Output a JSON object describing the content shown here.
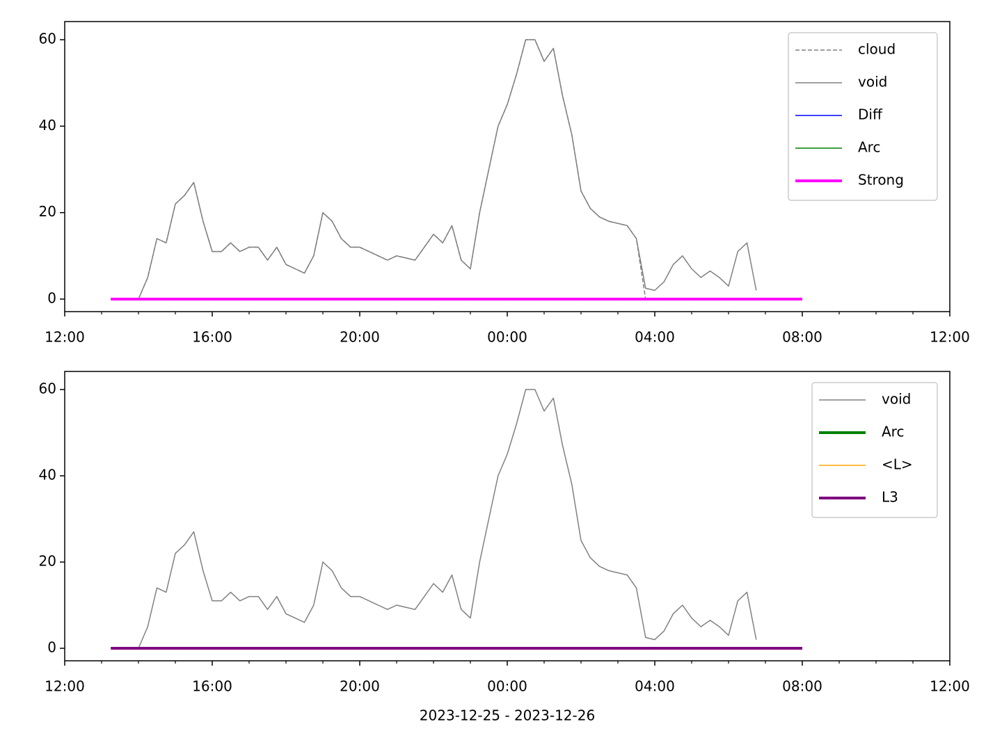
{
  "chart_data": [
    {
      "type": "line",
      "x": [
        13.25,
        13.5,
        13.75,
        14.0,
        14.25,
        14.5,
        14.75,
        15.0,
        15.25,
        15.5,
        15.75,
        16.0,
        16.25,
        16.5,
        16.75,
        17.0,
        17.25,
        17.5,
        17.75,
        18.0,
        18.25,
        18.5,
        18.75,
        19.0,
        19.25,
        19.5,
        19.75,
        20.0,
        20.25,
        20.5,
        20.75,
        21.0,
        21.25,
        21.5,
        21.75,
        22.0,
        22.25,
        22.5,
        22.75,
        23.0,
        23.25,
        23.5,
        23.75,
        24.0,
        24.25,
        24.5,
        24.75,
        25.0,
        25.25,
        25.5,
        25.75,
        26.0,
        26.25,
        26.5,
        26.75,
        27.0,
        27.25,
        27.5,
        27.75,
        28.0,
        28.25,
        28.5,
        28.75,
        29.0,
        29.25,
        29.5,
        29.75,
        30.0,
        30.25,
        30.5,
        30.75,
        31.0,
        31.25,
        31.5,
        31.75,
        32.0
      ],
      "series": [
        {
          "name": "cloud",
          "color": "#808080",
          "linestyle": "dashed",
          "linewidth": 1.5,
          "values": [
            null,
            null,
            null,
            0,
            5,
            14,
            13,
            22,
            24,
            27,
            18,
            11,
            11,
            13,
            11,
            12,
            12,
            9,
            12,
            8,
            7,
            6,
            10,
            20,
            18,
            14,
            12,
            12,
            11,
            10,
            9,
            10,
            9.5,
            9,
            12,
            15,
            13,
            17,
            9,
            7,
            20,
            30,
            40,
            45,
            52,
            60,
            60,
            55,
            58,
            47,
            38,
            25,
            21,
            19,
            18,
            17.5,
            17,
            14,
            0,
            0,
            0,
            0,
            0,
            0,
            0,
            0,
            0,
            0,
            0,
            0,
            0,
            null,
            null,
            null,
            null,
            null
          ]
        },
        {
          "name": "void",
          "color": "#808080",
          "linewidth": 1.5,
          "values": [
            null,
            null,
            null,
            0,
            5,
            14,
            13,
            22,
            24,
            27,
            18,
            11,
            11,
            13,
            11,
            12,
            12,
            9,
            12,
            8,
            7,
            6,
            10,
            20,
            18,
            14,
            12,
            12,
            11,
            10,
            9,
            10,
            9.5,
            9,
            12,
            15,
            13,
            17,
            9,
            7,
            20,
            30,
            40,
            45,
            52,
            60,
            60,
            55,
            58,
            47,
            38,
            25,
            21,
            19,
            18,
            17.5,
            17,
            14,
            2.5,
            2,
            4,
            8,
            10,
            7,
            5,
            6.5,
            5,
            3,
            11,
            13,
            2,
            null,
            null,
            null,
            null,
            null
          ]
        },
        {
          "name": "Diff",
          "color": "#0000ff",
          "linewidth": 1.5,
          "values": [
            0,
            0,
            0,
            0,
            0,
            0,
            0,
            0,
            0,
            0,
            0,
            0,
            0,
            0,
            0,
            0,
            0,
            0,
            0,
            0,
            0,
            0,
            0,
            0,
            0,
            0,
            0,
            0,
            0,
            0,
            0,
            0,
            0,
            0,
            0,
            0,
            0,
            0,
            0,
            0,
            0,
            0,
            0,
            0,
            0,
            0,
            0,
            0,
            0,
            0,
            0,
            0,
            0,
            0,
            0,
            0,
            0,
            0,
            0,
            0,
            0,
            0,
            0,
            0,
            0,
            0,
            0,
            0,
            0,
            0,
            0,
            0,
            0,
            0,
            0,
            0
          ]
        },
        {
          "name": "Arc",
          "color": "#008000",
          "linewidth": 1.5,
          "values": [
            0,
            0,
            0,
            0,
            0,
            0,
            0,
            0,
            0,
            0,
            0,
            0,
            0,
            0,
            0,
            0,
            0,
            0,
            0,
            0,
            0,
            0,
            0,
            0,
            0,
            0,
            0,
            0,
            0,
            0,
            0,
            0,
            0,
            0,
            0,
            0,
            0,
            0,
            0,
            0,
            0,
            0,
            0,
            0,
            0,
            0,
            0,
            0,
            0,
            0,
            0,
            0,
            0,
            0,
            0,
            0,
            0,
            0,
            0,
            0,
            0,
            0,
            0,
            0,
            0,
            0,
            0,
            0,
            0,
            0,
            0,
            0,
            0,
            0,
            0,
            0
          ]
        },
        {
          "name": "Strong",
          "color": "#ff00ff",
          "linewidth": 4,
          "values": [
            0,
            0,
            0,
            0,
            0,
            0,
            0,
            0,
            0,
            0,
            0,
            0,
            0,
            0,
            0,
            0,
            0,
            0,
            0,
            0,
            0,
            0,
            0,
            0,
            0,
            0,
            0,
            0,
            0,
            0,
            0,
            0,
            0,
            0,
            0,
            0,
            0,
            0,
            0,
            0,
            0,
            0,
            0,
            0,
            0,
            0,
            0,
            0,
            0,
            0,
            0,
            0,
            0,
            0,
            0,
            0,
            0,
            0,
            0,
            0,
            0,
            0,
            0,
            0,
            0,
            0,
            0,
            0,
            0,
            0,
            0,
            0,
            0,
            0,
            0,
            0
          ]
        }
      ],
      "xlim": [
        12,
        36
      ],
      "xticks": [
        {
          "value": 12,
          "label": "12:00"
        },
        {
          "value": 16,
          "label": "16:00"
        },
        {
          "value": 20,
          "label": "20:00"
        },
        {
          "value": 24,
          "label": "00:00"
        },
        {
          "value": 28,
          "label": "04:00"
        },
        {
          "value": 32,
          "label": "08:00"
        },
        {
          "value": 36,
          "label": "12:00"
        }
      ],
      "xminorticks": [
        13,
        14,
        15,
        17,
        18,
        19,
        21,
        22,
        23,
        25,
        26,
        27,
        29,
        30,
        31,
        33,
        34,
        35
      ],
      "ylim": [
        -2.9,
        64.2
      ],
      "yticks": [
        0,
        20,
        40,
        60
      ],
      "legend": "upper right"
    },
    {
      "type": "line",
      "x": [
        13.25,
        13.5,
        13.75,
        14.0,
        14.25,
        14.5,
        14.75,
        15.0,
        15.25,
        15.5,
        15.75,
        16.0,
        16.25,
        16.5,
        16.75,
        17.0,
        17.25,
        17.5,
        17.75,
        18.0,
        18.25,
        18.5,
        18.75,
        19.0,
        19.25,
        19.5,
        19.75,
        20.0,
        20.25,
        20.5,
        20.75,
        21.0,
        21.25,
        21.5,
        21.75,
        22.0,
        22.25,
        22.5,
        22.75,
        23.0,
        23.25,
        23.5,
        23.75,
        24.0,
        24.25,
        24.5,
        24.75,
        25.0,
        25.25,
        25.5,
        25.75,
        26.0,
        26.25,
        26.5,
        26.75,
        27.0,
        27.25,
        27.5,
        27.75,
        28.0,
        28.25,
        28.5,
        28.75,
        29.0,
        29.25,
        29.5,
        29.75,
        30.0,
        30.25,
        30.5,
        30.75,
        31.0,
        31.25,
        31.5,
        31.75,
        32.0
      ],
      "series": [
        {
          "name": "void",
          "color": "#808080",
          "linewidth": 1.5,
          "values": [
            null,
            null,
            null,
            0,
            5,
            14,
            13,
            22,
            24,
            27,
            18,
            11,
            11,
            13,
            11,
            12,
            12,
            9,
            12,
            8,
            7,
            6,
            10,
            20,
            18,
            14,
            12,
            12,
            11,
            10,
            9,
            10,
            9.5,
            9,
            12,
            15,
            13,
            17,
            9,
            7,
            20,
            30,
            40,
            45,
            52,
            60,
            60,
            55,
            58,
            47,
            38,
            25,
            21,
            19,
            18,
            17.5,
            17,
            14,
            2.5,
            2,
            4,
            8,
            10,
            7,
            5,
            6.5,
            5,
            3,
            11,
            13,
            2,
            null,
            null,
            null,
            null,
            null
          ]
        },
        {
          "name": "Arc",
          "color": "#008000",
          "linewidth": 4,
          "values": [
            0,
            0,
            0,
            0,
            0,
            0,
            0,
            0,
            0,
            0,
            0,
            0,
            0,
            0,
            0,
            0,
            0,
            0,
            0,
            0,
            0,
            0,
            0,
            0,
            0,
            0,
            0,
            0,
            0,
            0,
            0,
            0,
            0,
            0,
            0,
            0,
            0,
            0,
            0,
            0,
            0,
            0,
            0,
            0,
            0,
            0,
            0,
            0,
            0,
            0,
            0,
            0,
            0,
            0,
            0,
            0,
            0,
            0,
            0,
            0,
            0,
            0,
            0,
            0,
            0,
            0,
            0,
            0,
            0,
            0,
            0,
            0,
            0,
            0,
            0,
            0
          ]
        },
        {
          "name": "<L>",
          "color": "#ffa500",
          "linewidth": 1.5,
          "values": [
            0,
            0,
            0,
            0,
            0,
            0,
            0,
            0,
            0,
            0,
            0,
            0,
            0,
            0,
            0,
            0,
            0,
            0,
            0,
            0,
            0,
            0,
            0,
            0,
            0,
            0,
            0,
            0,
            0,
            0,
            0,
            0,
            0,
            0,
            0,
            0,
            0,
            0,
            0,
            0,
            0,
            0,
            0,
            0,
            0,
            0,
            0,
            0,
            0,
            0,
            0,
            0,
            0,
            0,
            0,
            0,
            0,
            0,
            0,
            0,
            0,
            0,
            0,
            0,
            0,
            0,
            0,
            0,
            0,
            0,
            0,
            0,
            0,
            0,
            0,
            0
          ]
        },
        {
          "name": "L3",
          "color": "#800080",
          "linewidth": 4,
          "values": [
            0,
            0,
            0,
            0,
            0,
            0,
            0,
            0,
            0,
            0,
            0,
            0,
            0,
            0,
            0,
            0,
            0,
            0,
            0,
            0,
            0,
            0,
            0,
            0,
            0,
            0,
            0,
            0,
            0,
            0,
            0,
            0,
            0,
            0,
            0,
            0,
            0,
            0,
            0,
            0,
            0,
            0,
            0,
            0,
            0,
            0,
            0,
            0,
            0,
            0,
            0,
            0,
            0,
            0,
            0,
            0,
            0,
            0,
            0,
            0,
            0,
            0,
            0,
            0,
            0,
            0,
            0,
            0,
            0,
            0,
            0,
            0,
            0,
            0,
            0,
            0
          ]
        }
      ],
      "xlim": [
        12,
        36
      ],
      "xticks": [
        {
          "value": 12,
          "label": "12:00"
        },
        {
          "value": 16,
          "label": "16:00"
        },
        {
          "value": 20,
          "label": "20:00"
        },
        {
          "value": 24,
          "label": "00:00"
        },
        {
          "value": 28,
          "label": "04:00"
        },
        {
          "value": 32,
          "label": "08:00"
        },
        {
          "value": 36,
          "label": "12:00"
        }
      ],
      "xminorticks": [
        13,
        14,
        15,
        17,
        18,
        19,
        21,
        22,
        23,
        25,
        26,
        27,
        29,
        30,
        31,
        33,
        34,
        35
      ],
      "ylim": [
        -2.9,
        64.2
      ],
      "yticks": [
        0,
        20,
        40,
        60
      ],
      "xlabel": "2023-12-25 - 2023-12-26",
      "legend": "upper right"
    }
  ]
}
